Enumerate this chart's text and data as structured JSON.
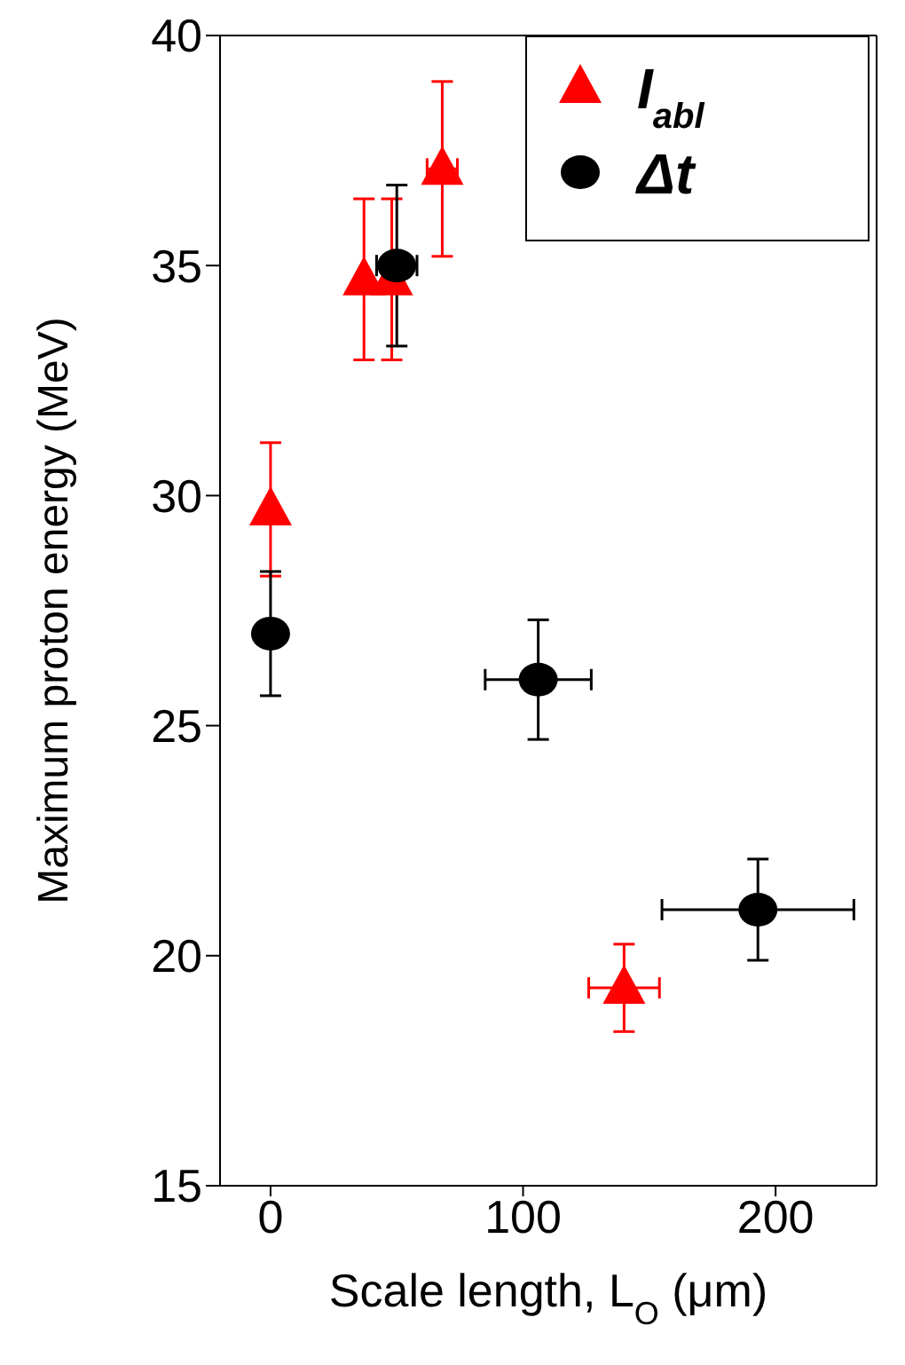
{
  "chart_data": {
    "type": "scatter",
    "xlabel": "Scale length, L$_{O}$ (μm)",
    "ylabel": "Maximum proton energy (MeV)",
    "xlim": [
      -20,
      240
    ],
    "xticks": [
      0,
      100,
      200
    ],
    "ylim": [
      15,
      40
    ],
    "yticks": [
      15,
      20,
      25,
      30,
      35,
      40
    ],
    "legend": "top right",
    "series": [
      {
        "name": "I$_{abl}$",
        "color": "#ff0000",
        "marker": "triangle",
        "x": [
          0,
          37,
          48,
          68,
          140
        ],
        "values": [
          29.7,
          34.7,
          34.7,
          37.1,
          19.3
        ],
        "errors": [
          1.45,
          1.75,
          1.75,
          1.9,
          0.95
        ],
        "xerrors": [
          null,
          null,
          null,
          6,
          14
        ]
      },
      {
        "name": "Δt",
        "color": "#000000",
        "marker": "circle",
        "x": [
          0,
          50,
          106,
          193
        ],
        "values": [
          27,
          35,
          26,
          21
        ],
        "errors": [
          1.35,
          1.75,
          1.3,
          1.1
        ],
        "xerrors": [
          null,
          8,
          21,
          38
        ]
      }
    ]
  }
}
